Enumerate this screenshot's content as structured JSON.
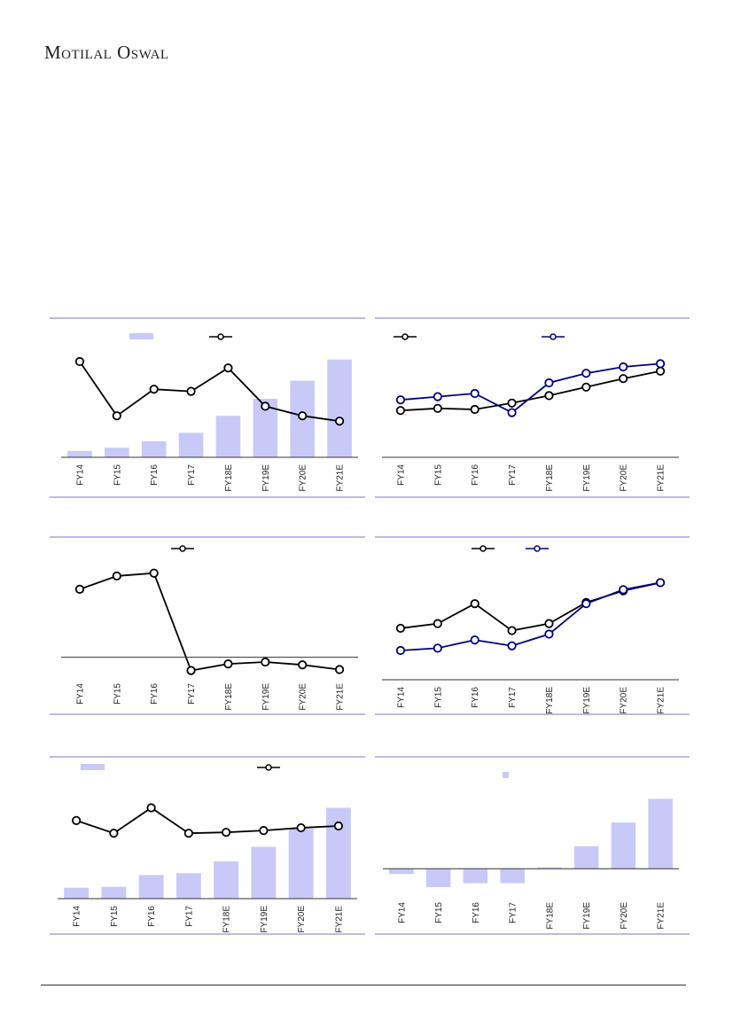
{
  "brand": "Motilal Oswal",
  "colors": {
    "bar": "#c9c9f8",
    "line_black": "#000000",
    "line_navy": "#000080",
    "rule": "#7777cc",
    "axis": "#333333"
  },
  "chart_data": [
    {
      "type": "bar",
      "title": "",
      "categories": [
        "FY14",
        "FY15",
        "FY16",
        "FY17",
        "FY18E",
        "FY19E",
        "FY20E",
        "FY21E"
      ],
      "series": [
        {
          "values": [
            3,
            4.5,
            7.5,
            11.5,
            19.5,
            27.5,
            36,
            46
          ]
        },
        {
          "type": "line",
          "values": [
            45,
            19.5,
            32,
            31,
            42,
            24,
            19.5,
            17
          ]
        }
      ],
      "legend": "top",
      "ylim": [
        0,
        50
      ]
    },
    {
      "type": "line",
      "title": "",
      "categories": [
        "FY14",
        "FY15",
        "FY16",
        "FY17",
        "FY18E",
        "FY19E",
        "FY20E",
        "FY21E"
      ],
      "series": [
        {
          "color": "#000000",
          "values": [
            22,
            23,
            22.5,
            25.5,
            29,
            33,
            37,
            40.5
          ]
        },
        {
          "color": "#000080",
          "values": [
            27,
            28.5,
            30,
            21,
            35,
            39.5,
            42.5,
            44
          ]
        }
      ],
      "legend": "top",
      "ylim": [
        0,
        50
      ]
    },
    {
      "type": "line",
      "title": "",
      "categories": [
        "FY14",
        "FY15",
        "FY16",
        "FY17",
        "FY18E",
        "FY19E",
        "FY20E",
        "FY21E"
      ],
      "series": [
        {
          "color": "#000000",
          "values": [
            36,
            43,
            44.5,
            -7,
            -3.5,
            -2.5,
            -4,
            -6.5
          ]
        }
      ],
      "legend": "top",
      "ylim": [
        -10,
        50
      ]
    },
    {
      "type": "line",
      "title": "",
      "categories": [
        "FY14",
        "FY15",
        "FY16",
        "FY17",
        "FY18E",
        "FY19E",
        "FY20E",
        "FY21E"
      ],
      "series": [
        {
          "color": "#000000",
          "values": [
            22,
            24,
            32.5,
            21,
            24,
            33,
            38,
            41.5
          ]
        },
        {
          "color": "#000080",
          "values": [
            12.5,
            13.5,
            17,
            14.5,
            19.5,
            32.5,
            38.5,
            41.5
          ]
        }
      ],
      "legend": "top",
      "ylim": [
        0,
        50
      ]
    },
    {
      "type": "bar",
      "title": "",
      "categories": [
        "FY14",
        "FY15",
        "FY16",
        "FY17",
        "FY18E",
        "FY19E",
        "FY20E",
        "FY21E"
      ],
      "series": [
        {
          "values": [
            6,
            6.5,
            13,
            14,
            20.5,
            28.5,
            38.5,
            50
          ]
        },
        {
          "type": "line",
          "values": [
            43,
            36,
            50,
            36,
            36.5,
            37.5,
            39,
            40
          ]
        }
      ],
      "legend": "top",
      "ylim": [
        0,
        60
      ]
    },
    {
      "type": "bar",
      "title": "",
      "categories": [
        "FY14",
        "FY15",
        "FY16",
        "FY17",
        "FY18E",
        "FY19E",
        "FY20E",
        "FY21E"
      ],
      "series": [
        {
          "values": [
            -2,
            -7,
            -5.5,
            -5.5,
            0.5,
            8.5,
            17.5,
            26.5
          ]
        }
      ],
      "legend": "top",
      "ylim": [
        -10,
        30
      ]
    }
  ]
}
